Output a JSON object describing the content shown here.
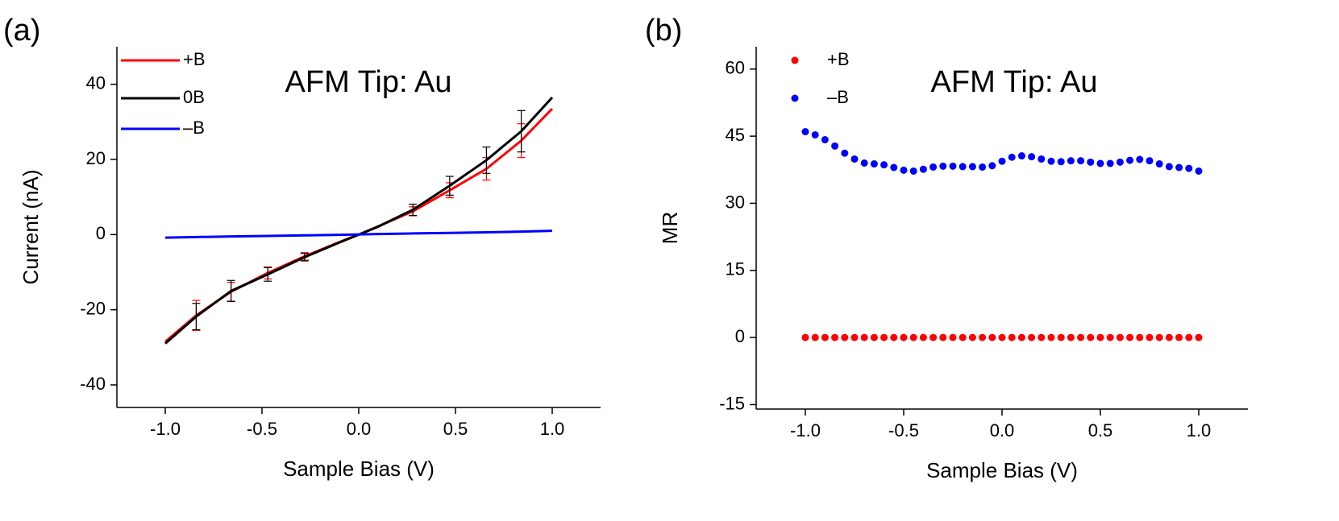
{
  "chart_data": [
    {
      "type": "line",
      "panel_label": "(a)",
      "annotation": "AFM Tip: Au",
      "x_label": "Sample Bias (V)",
      "y_label": "Current (nA)",
      "x": [
        -1.0,
        -0.84,
        -0.66,
        -0.47,
        -0.28,
        -0.1,
        0.0,
        0.1,
        0.28,
        0.47,
        0.66,
        0.84,
        1.0
      ],
      "series": [
        {
          "name": "+B",
          "color": "#ff0000",
          "values": [
            -28.5,
            -21.5,
            -15.2,
            -10.2,
            -5.8,
            -2.0,
            0,
            2.2,
            6.2,
            11.8,
            17.5,
            25.0,
            33.5
          ],
          "errors": [
            null,
            4.0,
            2.5,
            1.6,
            1.0,
            null,
            null,
            null,
            1.2,
            2.0,
            3.0,
            4.5,
            null
          ]
        },
        {
          "name": "0B",
          "color": "#000000",
          "values": [
            -29,
            -21.8,
            -15.0,
            -10.6,
            -6.0,
            -2.1,
            0,
            2.1,
            6.6,
            13.0,
            19.8,
            27.5,
            36.5
          ],
          "errors": [
            null,
            3.5,
            2.8,
            1.8,
            1.0,
            null,
            null,
            null,
            1.5,
            2.5,
            3.5,
            5.5,
            null
          ]
        },
        {
          "name": "–B",
          "color": "#0000ff",
          "values": [
            -0.8,
            -0.65,
            -0.5,
            -0.35,
            -0.2,
            -0.05,
            0.05,
            0.15,
            0.3,
            0.45,
            0.6,
            0.8,
            1.0
          ]
        }
      ],
      "xlim": [
        -1.25,
        1.25
      ],
      "xticks": [
        {
          "value": -1,
          "label": "-1.0"
        },
        -0.5,
        {
          "value": 0,
          "label": "0.0"
        },
        0.5,
        {
          "value": 1,
          "label": "1.0"
        }
      ],
      "ylim": [
        -46,
        50
      ],
      "yticks": [
        -40,
        -20,
        0,
        20,
        40
      ],
      "legend": "upper-left"
    },
    {
      "type": "scatter",
      "panel_label": "(b)",
      "annotation": "AFM Tip: Au",
      "x_label": "Sample Bias (V)",
      "y_label": "MR",
      "x": [
        -1.0,
        -0.95,
        -0.9,
        -0.85,
        -0.8,
        -0.75,
        -0.7,
        -0.65,
        -0.6,
        -0.55,
        -0.5,
        -0.45,
        -0.4,
        -0.35,
        -0.3,
        -0.25,
        -0.2,
        -0.15,
        -0.1,
        -0.05,
        0.0,
        0.05,
        0.1,
        0.15,
        0.2,
        0.25,
        0.3,
        0.35,
        0.4,
        0.45,
        0.5,
        0.55,
        0.6,
        0.65,
        0.7,
        0.75,
        0.8,
        0.85,
        0.9,
        0.95,
        1.0
      ],
      "series": [
        {
          "name": "+B",
          "color": "#ff0000",
          "values": [
            0,
            0,
            0,
            0,
            0,
            0,
            0,
            0,
            0,
            0,
            0,
            0,
            0,
            0,
            0,
            0,
            0,
            0,
            0,
            0,
            0,
            0,
            0,
            0,
            0,
            0,
            0,
            0,
            0,
            0,
            0,
            0,
            0,
            0,
            0,
            0,
            0,
            0,
            0,
            0,
            0
          ]
        },
        {
          "name": "–B",
          "color": "#0000ff",
          "values": [
            46,
            45.3,
            44.2,
            42.8,
            41.2,
            39.9,
            39.0,
            38.8,
            38.6,
            38.0,
            37.4,
            37.2,
            37.6,
            38.1,
            38.3,
            38.3,
            38.2,
            38.2,
            38.1,
            38.4,
            39.4,
            40.3,
            40.6,
            40.4,
            39.9,
            39.4,
            39.3,
            39.5,
            39.5,
            39.2,
            38.9,
            38.9,
            39.2,
            39.6,
            39.8,
            39.5,
            38.8,
            38.2,
            38.0,
            37.8,
            37.2
          ]
        }
      ],
      "xlim": [
        -1.25,
        1.25
      ],
      "xticks": [
        {
          "value": -1,
          "label": "-1.0"
        },
        -0.5,
        {
          "value": 0,
          "label": "0.0"
        },
        0.5,
        {
          "value": 1,
          "label": "1.0"
        }
      ],
      "ylim": [
        -16,
        65
      ],
      "yticks": [
        -15,
        0,
        15,
        30,
        45,
        60
      ],
      "legend": "upper-left"
    }
  ]
}
